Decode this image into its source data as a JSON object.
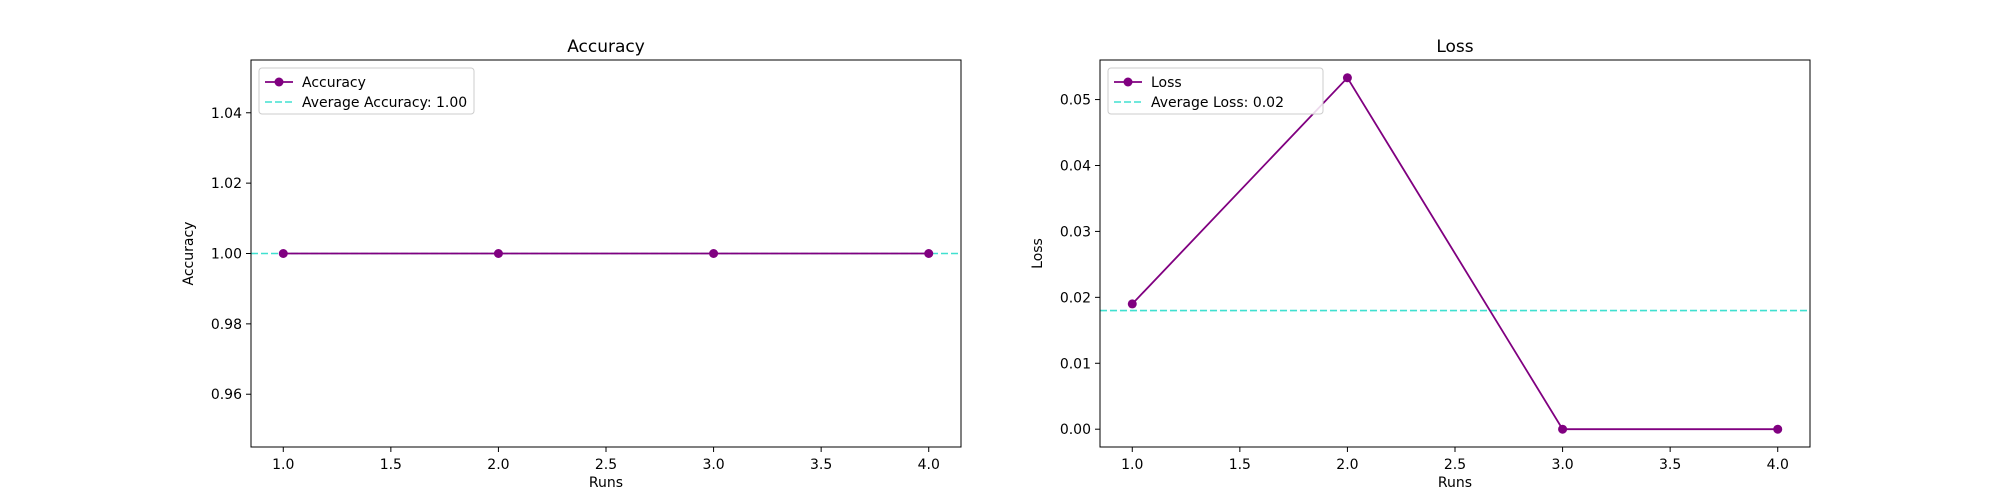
{
  "colors": {
    "series": "#800080",
    "reference": "#40E0D0",
    "axes": "#000000",
    "background": "#ffffff"
  },
  "chart_data": [
    {
      "type": "line",
      "title": "Accuracy",
      "xlabel": "Runs",
      "ylabel": "Accuracy",
      "xlim": [
        0.85,
        4.15
      ],
      "ylim": [
        0.945,
        1.055
      ],
      "xticks": [
        "1.0",
        "1.5",
        "2.0",
        "2.5",
        "3.0",
        "3.5",
        "4.0"
      ],
      "yticks": [
        "0.96",
        "0.98",
        "1.00",
        "1.02",
        "1.04"
      ],
      "grid": false,
      "legend_position": "upper-left",
      "series": [
        {
          "name": "Accuracy",
          "x": [
            1.0,
            2.0,
            3.0,
            4.0
          ],
          "values": [
            1.0,
            1.0,
            1.0,
            1.0
          ]
        }
      ],
      "reference_line": {
        "label": "Average Accuracy: 1.00",
        "value": 1.0
      }
    },
    {
      "type": "line",
      "title": "Loss",
      "xlabel": "Runs",
      "ylabel": "Loss",
      "xlim": [
        0.85,
        4.15
      ],
      "ylim": [
        -0.0027,
        0.056
      ],
      "xticks": [
        "1.0",
        "1.5",
        "2.0",
        "2.5",
        "3.0",
        "3.5",
        "4.0"
      ],
      "yticks": [
        "0.00",
        "0.01",
        "0.02",
        "0.03",
        "0.04",
        "0.05"
      ],
      "grid": false,
      "legend_position": "upper-left",
      "series": [
        {
          "name": "Loss",
          "x": [
            1.0,
            2.0,
            3.0,
            4.0
          ],
          "values": [
            0.019,
            0.0533,
            0.0,
            0.0
          ]
        }
      ],
      "reference_line": {
        "label": "Average Loss: 0.02",
        "value": 0.018
      }
    }
  ]
}
